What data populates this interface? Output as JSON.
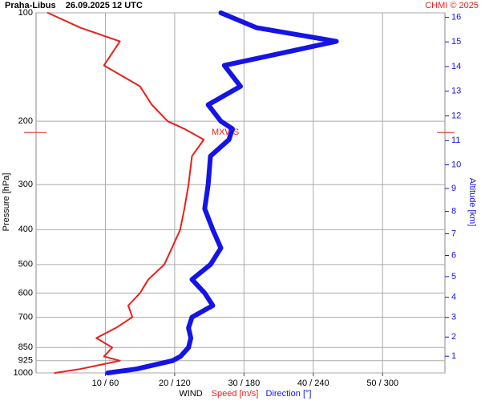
{
  "chart_data": {
    "type": "line",
    "title": "Praha-Libus    26.09.2025 12 UTC",
    "credit": "CHMI © 2025",
    "ylabel": "Pressure [hPa]",
    "y2label": "Altitude [km]",
    "xlabel": "WIND",
    "annotation": "MXWS",
    "annotation_pressure": 215,
    "log_y": true,
    "grid": true,
    "pressure": [
      1000,
      975,
      925,
      900,
      850,
      800,
      750,
      700,
      650,
      600,
      550,
      500,
      450,
      400,
      350,
      300,
      250,
      225,
      210,
      200,
      180,
      160,
      140,
      120,
      110,
      100
    ],
    "series": [
      {
        "name": "Speed [m/s]",
        "color": "#e8201c",
        "axis": "x",
        "values": [
          2.7,
          6.4,
          12.1,
          9.8,
          11,
          8.7,
          11.5,
          13.9,
          13.3,
          15,
          16.2,
          18.5,
          19.6,
          20.8,
          21.4,
          22,
          22.5,
          24.2,
          21.4,
          19,
          16.7,
          15,
          9.8,
          12.1,
          6.4,
          1.7
        ]
      },
      {
        "name": "Direction [°]",
        "color": "#1414e6",
        "axis": "x2",
        "values": [
          62,
          87,
          118,
          125,
          132,
          134,
          132,
          135,
          153,
          146,
          135,
          151,
          160,
          153,
          146,
          149,
          151,
          167,
          170,
          160,
          149,
          177,
          163,
          260,
          191,
          160
        ]
      }
    ],
    "xlim": [
      0,
      59
    ],
    "x2lim": [
      0,
      354
    ],
    "xticks": [
      {
        "value": 10,
        "label": "10 / 60"
      },
      {
        "value": 20,
        "label": "20 / 120"
      },
      {
        "value": 30,
        "label": "30 / 180"
      },
      {
        "value": 40,
        "label": "40 / 240"
      },
      {
        "value": 50,
        "label": "50 / 300"
      }
    ],
    "ylim": [
      1000,
      100
    ],
    "yticks": [
      100,
      200,
      300,
      400,
      500,
      600,
      700,
      850,
      925,
      1000
    ],
    "y2ticks": [
      1,
      2,
      3,
      4,
      5,
      6,
      7,
      8,
      9,
      10,
      11,
      12,
      13,
      14,
      15,
      16
    ]
  }
}
